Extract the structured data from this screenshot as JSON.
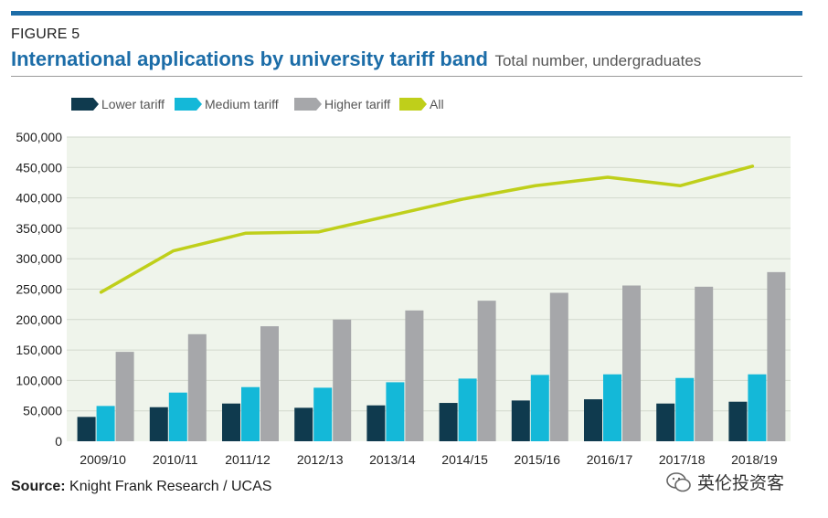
{
  "figure_label": "FIGURE 5",
  "title": "International applications by university tariff band",
  "subtitle": "Total number, undergraduates",
  "source_label": "Source:",
  "source_text": "Knight Frank Research / UCAS",
  "watermark_text": "英伦投资客",
  "chart_data": {
    "type": "bar",
    "combo_line_series": "All",
    "categories": [
      "2009/10",
      "2010/11",
      "2011/12",
      "2012/13",
      "2013/14",
      "2014/15",
      "2015/16",
      "2016/17",
      "2017/18",
      "2018/19"
    ],
    "series": [
      {
        "name": "Lower tariff",
        "type": "bar",
        "color": "#0f3a4e",
        "values": [
          40000,
          56000,
          62000,
          55000,
          59000,
          63000,
          67000,
          69000,
          62000,
          65000
        ]
      },
      {
        "name": "Medium tariff",
        "type": "bar",
        "color": "#14b8d8",
        "values": [
          58000,
          80000,
          89000,
          88000,
          97000,
          103000,
          109000,
          110000,
          104000,
          110000
        ]
      },
      {
        "name": "Higher tariff",
        "type": "bar",
        "color": "#a6a7aa",
        "values": [
          147000,
          176000,
          189000,
          200000,
          215000,
          231000,
          244000,
          256000,
          254000,
          278000
        ]
      },
      {
        "name": "All",
        "type": "line",
        "color": "#bfcf1a",
        "values": [
          245000,
          313000,
          342000,
          344000,
          371000,
          398000,
          420000,
          434000,
          420000,
          452000
        ]
      }
    ],
    "yticks": [
      "0",
      "50,000",
      "100,000",
      "150,000",
      "200,000",
      "250,000",
      "300,000",
      "350,000",
      "400,000",
      "450,000",
      "500,000"
    ],
    "ylim": [
      0,
      500000
    ],
    "xlabel": "",
    "ylabel": "",
    "legend_position": "top-left",
    "grid": true
  }
}
